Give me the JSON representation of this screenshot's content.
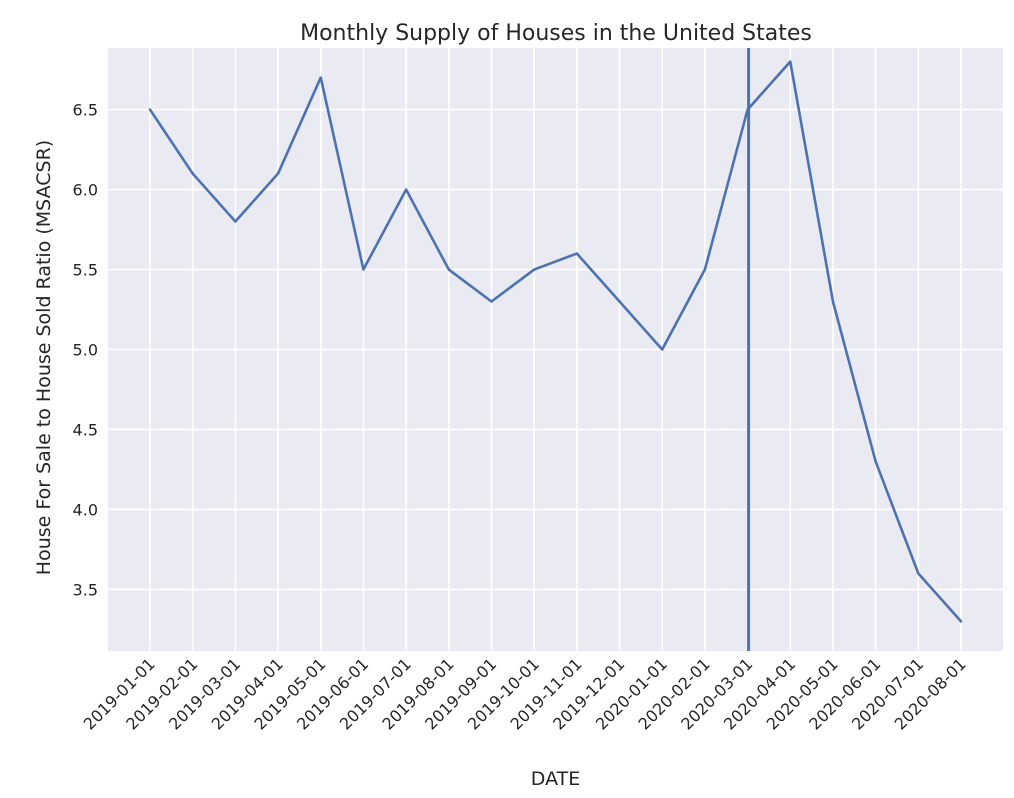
{
  "chart_data": {
    "type": "line",
    "title": "Monthly Supply of Houses in the United States",
    "xlabel": "DATE",
    "ylabel": "House For Sale to House Sold Ratio (MSACSR)",
    "categories": [
      "2019-01-01",
      "2019-02-01",
      "2019-03-01",
      "2019-04-01",
      "2019-05-01",
      "2019-06-01",
      "2019-07-01",
      "2019-08-01",
      "2019-09-01",
      "2019-10-01",
      "2019-11-01",
      "2019-12-01",
      "2020-01-01",
      "2020-02-01",
      "2020-03-01",
      "2020-04-01",
      "2020-05-01",
      "2020-06-01",
      "2020-07-01",
      "2020-08-01"
    ],
    "series": [
      {
        "values": [
          6.5,
          6.1,
          5.8,
          6.1,
          6.7,
          5.5,
          6.0,
          5.5,
          5.3,
          5.5,
          5.6,
          5.3,
          5.0,
          5.5,
          6.5,
          6.8,
          5.3,
          4.3,
          3.6,
          3.3
        ]
      }
    ],
    "yticks": [
      3.5,
      4.0,
      4.5,
      5.0,
      5.5,
      6.0,
      6.5
    ],
    "ylim": [
      3.115,
      6.885
    ],
    "vertical_line_at": "2020-03-01",
    "grid": true,
    "colors": {
      "background": "#eaeaf2",
      "line": "#4c72b0",
      "vline": "#4c72b0",
      "grid": "#ffffff",
      "text": "#262626"
    }
  }
}
